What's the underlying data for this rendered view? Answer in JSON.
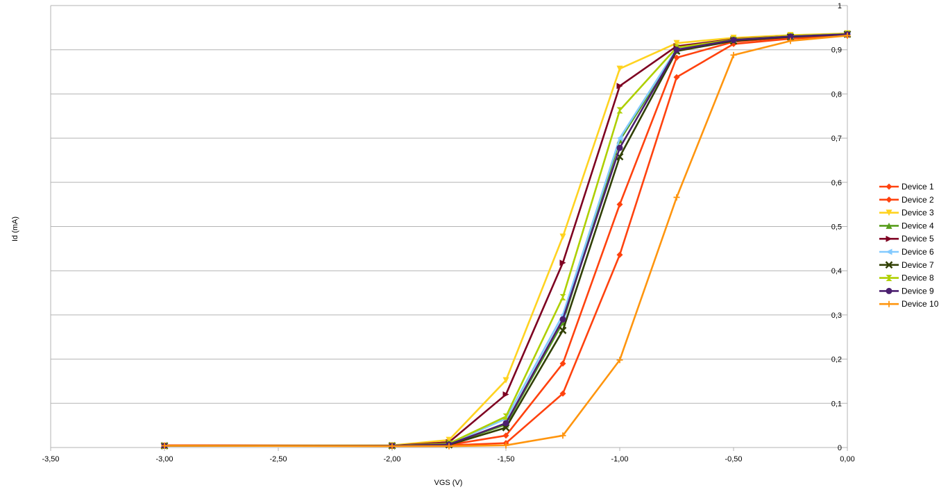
{
  "chart_data": {
    "type": "line",
    "title": "",
    "xlabel": "VGS (V)",
    "ylabel": "Id (mA)",
    "xlim": [
      -3.5,
      0
    ],
    "ylim": [
      0,
      1
    ],
    "x_ticks": [
      -3.5,
      -3.0,
      -2.5,
      -2.0,
      -1.5,
      -1.0,
      -0.5,
      0.0
    ],
    "x_tick_labels": [
      "-3,50",
      "-3,00",
      "-2,50",
      "-2,00",
      "-1,50",
      "-1,00",
      "-0,50",
      "0,00"
    ],
    "y_ticks": [
      0,
      0.1,
      0.2,
      0.3,
      0.4,
      0.5,
      0.6,
      0.7,
      0.8,
      0.9,
      1
    ],
    "y_tick_labels": [
      "0",
      "0,1",
      "0,2",
      "0,3",
      "0,4",
      "0,5",
      "0,6",
      "0,7",
      "0,8",
      "0,9",
      "1"
    ],
    "grid": "horizontal",
    "legend_position": "right",
    "x": [
      -3.0,
      -2.0,
      -1.75,
      -1.5,
      -1.25,
      -1.0,
      -0.75,
      -0.5,
      -0.25,
      0.0
    ],
    "series": [
      {
        "name": "Device 1",
        "color": "#ff420e",
        "marker": "diamond",
        "values": [
          0.005,
          0.004,
          0.005,
          0.01,
          0.122,
          0.436,
          0.838,
          0.913,
          0.925,
          0.932
        ]
      },
      {
        "name": "Device 2",
        "color": "#ff420e",
        "marker": "diamond",
        "values": [
          0.005,
          0.004,
          0.006,
          0.027,
          0.19,
          0.55,
          0.882,
          0.918,
          0.928,
          0.934
        ]
      },
      {
        "name": "Device 3",
        "color": "#ffd320",
        "marker": "triangle-down",
        "values": [
          0.004,
          0.005,
          0.017,
          0.152,
          0.477,
          0.857,
          0.915,
          0.927,
          0.933,
          0.937
        ]
      },
      {
        "name": "Device 4",
        "color": "#579d1c",
        "marker": "triangle-up",
        "values": [
          0.004,
          0.004,
          0.007,
          0.052,
          0.283,
          0.695,
          0.898,
          0.922,
          0.93,
          0.936
        ]
      },
      {
        "name": "Device 5",
        "color": "#7e0021",
        "marker": "triangle-right",
        "values": [
          0.004,
          0.004,
          0.012,
          0.12,
          0.418,
          0.818,
          0.908,
          0.924,
          0.931,
          0.936
        ]
      },
      {
        "name": "Device 6",
        "color": "#83caff",
        "marker": "triangle-left",
        "values": [
          0.004,
          0.004,
          0.008,
          0.065,
          0.3,
          0.7,
          0.902,
          0.922,
          0.931,
          0.936
        ]
      },
      {
        "name": "Device 7",
        "color": "#314004",
        "marker": "x",
        "values": [
          0.004,
          0.004,
          0.006,
          0.045,
          0.265,
          0.658,
          0.897,
          0.92,
          0.929,
          0.935
        ]
      },
      {
        "name": "Device 8",
        "color": "#aecf00",
        "marker": "hourglass",
        "values": [
          0.004,
          0.004,
          0.009,
          0.07,
          0.34,
          0.763,
          0.905,
          0.923,
          0.931,
          0.936
        ]
      },
      {
        "name": "Device 9",
        "color": "#4b1f6f",
        "marker": "circle",
        "values": [
          0.004,
          0.004,
          0.007,
          0.055,
          0.29,
          0.678,
          0.9,
          0.922,
          0.93,
          0.935
        ]
      },
      {
        "name": "Device 10",
        "color": "#ff950e",
        "marker": "plus",
        "values": [
          0.004,
          0.003,
          0.003,
          0.005,
          0.027,
          0.198,
          0.566,
          0.888,
          0.92,
          0.932
        ]
      }
    ]
  }
}
